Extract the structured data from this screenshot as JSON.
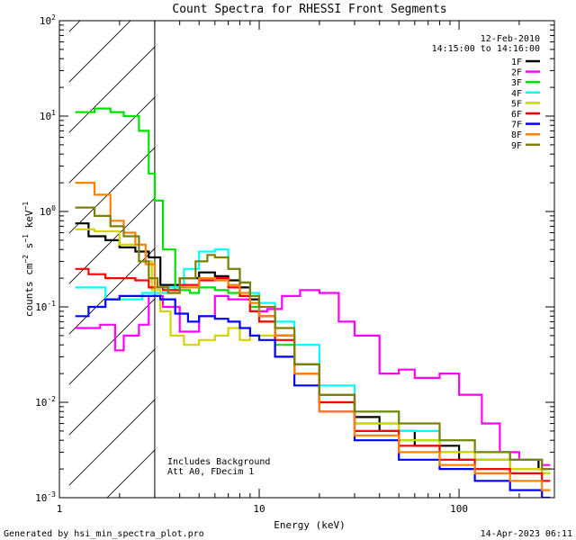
{
  "chart_data": {
    "type": "line",
    "title": "Count Spectra for RHESSI Front Segments",
    "xlabel": "Energy (keV)",
    "ylabel": {
      "base": "counts cm",
      "e1": "−2",
      "mid1": " s",
      "e2": "−1",
      "mid2": " keV",
      "e3": "−1"
    },
    "xscale": "log",
    "yscale": "log",
    "xlim": [
      1,
      300
    ],
    "ylim": [
      0.001,
      100
    ],
    "x_ticks": [
      {
        "value": 1,
        "label": "1"
      },
      {
        "value": 10,
        "label": "10"
      },
      {
        "value": 100,
        "label": "100"
      }
    ],
    "y_ticks": [
      {
        "value": 100,
        "base": "10",
        "exp": "2"
      },
      {
        "value": 10,
        "base": "10",
        "exp": "1"
      },
      {
        "value": 1,
        "base": "10",
        "exp": "0"
      },
      {
        "value": 0.1,
        "base": "10",
        "exp": "-1"
      },
      {
        "value": 0.01,
        "base": "10",
        "exp": "-2"
      },
      {
        "value": 0.001,
        "base": "10",
        "exp": "-3"
      }
    ],
    "hatched_region": [
      1.12,
      3.0
    ],
    "date": "12-Feb-2010",
    "time_range": "14:15:00 to 14:16:00",
    "annotations": [
      "Includes Background",
      "Att A0, FDecim 1"
    ],
    "series": [
      {
        "name": "1F",
        "color": "#000000",
        "points": [
          [
            1.2,
            0.75
          ],
          [
            1.4,
            0.55
          ],
          [
            1.7,
            0.5
          ],
          [
            2.0,
            0.42
          ],
          [
            2.4,
            0.38
          ],
          [
            2.8,
            0.33
          ],
          [
            3.2,
            0.17
          ],
          [
            4.0,
            0.2
          ],
          [
            5.0,
            0.23
          ],
          [
            6.0,
            0.21
          ],
          [
            7.0,
            0.19
          ],
          [
            8.0,
            0.16
          ],
          [
            9.0,
            0.12
          ],
          [
            10.0,
            0.08
          ],
          [
            12.0,
            0.05
          ],
          [
            15.0,
            0.025
          ],
          [
            20.0,
            0.012
          ],
          [
            30.0,
            0.007
          ],
          [
            40.0,
            0.005
          ],
          [
            60.0,
            0.0035
          ],
          [
            100.0,
            0.0025
          ],
          [
            150.0,
            0.0025
          ],
          [
            250.0,
            0.002
          ]
        ]
      },
      {
        "name": "2F",
        "color": "#ff00ff",
        "points": [
          [
            1.2,
            0.06
          ],
          [
            1.5,
            0.06
          ],
          [
            1.6,
            0.065
          ],
          [
            1.9,
            0.035
          ],
          [
            2.1,
            0.05
          ],
          [
            2.5,
            0.065
          ],
          [
            2.8,
            0.13
          ],
          [
            3.3,
            0.1
          ],
          [
            4.0,
            0.055
          ],
          [
            5.0,
            0.08
          ],
          [
            6.0,
            0.13
          ],
          [
            7.0,
            0.12
          ],
          [
            9.0,
            0.09
          ],
          [
            11.0,
            0.095
          ],
          [
            13.0,
            0.13
          ],
          [
            16.0,
            0.15
          ],
          [
            20.0,
            0.14
          ],
          [
            25.0,
            0.07
          ],
          [
            30.0,
            0.05
          ],
          [
            40.0,
            0.02
          ],
          [
            50.0,
            0.022
          ],
          [
            60.0,
            0.018
          ],
          [
            80.0,
            0.02
          ],
          [
            100.0,
            0.012
          ],
          [
            130.0,
            0.006
          ],
          [
            160.0,
            0.003
          ],
          [
            200.0,
            0.0025
          ],
          [
            260.0,
            0.0022
          ]
        ]
      },
      {
        "name": "3F",
        "color": "#00e000",
        "points": [
          [
            1.2,
            11.0
          ],
          [
            1.5,
            12.0
          ],
          [
            1.8,
            11.0
          ],
          [
            2.1,
            10.0
          ],
          [
            2.5,
            7.0
          ],
          [
            2.8,
            2.5
          ],
          [
            3.0,
            1.3
          ],
          [
            3.3,
            0.4
          ],
          [
            3.8,
            0.15
          ],
          [
            4.5,
            0.14
          ],
          [
            5.0,
            0.16
          ],
          [
            6.0,
            0.15
          ],
          [
            7.0,
            0.14
          ],
          [
            8.0,
            0.13
          ],
          [
            9.0,
            0.1
          ],
          [
            10.0,
            0.07
          ],
          [
            12.0,
            0.04
          ],
          [
            15.0,
            0.02
          ],
          [
            20.0,
            0.01
          ],
          [
            30.0,
            0.006
          ],
          [
            50.0,
            0.004
          ],
          [
            80.0,
            0.003
          ],
          [
            120.0,
            0.0025
          ],
          [
            180.0,
            0.002
          ],
          [
            260.0,
            0.0018
          ]
        ]
      },
      {
        "name": "4F",
        "color": "#00ffff",
        "points": [
          [
            1.2,
            0.16
          ],
          [
            1.4,
            0.16
          ],
          [
            1.7,
            0.12
          ],
          [
            2.2,
            0.12
          ],
          [
            2.6,
            0.14
          ],
          [
            3.0,
            0.14
          ],
          [
            3.5,
            0.16
          ],
          [
            4.2,
            0.25
          ],
          [
            5.0,
            0.38
          ],
          [
            6.0,
            0.4
          ],
          [
            7.0,
            0.25
          ],
          [
            8.0,
            0.18
          ],
          [
            9.0,
            0.14
          ],
          [
            10.0,
            0.11
          ],
          [
            12.0,
            0.07
          ],
          [
            15.0,
            0.04
          ],
          [
            20.0,
            0.015
          ],
          [
            30.0,
            0.008
          ],
          [
            50.0,
            0.005
          ],
          [
            80.0,
            0.004
          ],
          [
            120.0,
            0.003
          ],
          [
            180.0,
            0.0025
          ],
          [
            260.0,
            0.002
          ]
        ]
      },
      {
        "name": "5F",
        "color": "#d4d400",
        "points": [
          [
            1.2,
            0.65
          ],
          [
            1.5,
            0.62
          ],
          [
            2.0,
            0.45
          ],
          [
            2.5,
            0.3
          ],
          [
            2.9,
            0.15
          ],
          [
            3.2,
            0.09
          ],
          [
            3.6,
            0.05
          ],
          [
            4.2,
            0.04
          ],
          [
            5.0,
            0.045
          ],
          [
            6.0,
            0.05
          ],
          [
            7.0,
            0.06
          ],
          [
            8.0,
            0.045
          ],
          [
            9.0,
            0.05
          ],
          [
            10.0,
            0.05
          ],
          [
            12.0,
            0.03
          ],
          [
            15.0,
            0.02
          ],
          [
            20.0,
            0.01
          ],
          [
            30.0,
            0.006
          ],
          [
            50.0,
            0.004
          ],
          [
            80.0,
            0.003
          ],
          [
            120.0,
            0.0025
          ],
          [
            180.0,
            0.002
          ],
          [
            260.0,
            0.0018
          ]
        ]
      },
      {
        "name": "6F",
        "color": "#ff0000",
        "points": [
          [
            1.2,
            0.25
          ],
          [
            1.4,
            0.22
          ],
          [
            1.7,
            0.2
          ],
          [
            2.0,
            0.2
          ],
          [
            2.4,
            0.19
          ],
          [
            2.8,
            0.16
          ],
          [
            3.3,
            0.15
          ],
          [
            4.0,
            0.17
          ],
          [
            5.0,
            0.19
          ],
          [
            6.0,
            0.2
          ],
          [
            7.0,
            0.16
          ],
          [
            8.0,
            0.13
          ],
          [
            9.0,
            0.09
          ],
          [
            10.0,
            0.07
          ],
          [
            12.0,
            0.045
          ],
          [
            15.0,
            0.02
          ],
          [
            20.0,
            0.01
          ],
          [
            30.0,
            0.005
          ],
          [
            50.0,
            0.0035
          ],
          [
            80.0,
            0.0025
          ],
          [
            120.0,
            0.002
          ],
          [
            180.0,
            0.0018
          ],
          [
            260.0,
            0.0015
          ]
        ]
      },
      {
        "name": "7F",
        "color": "#0000ff",
        "points": [
          [
            1.2,
            0.08
          ],
          [
            1.4,
            0.1
          ],
          [
            1.7,
            0.12
          ],
          [
            2.0,
            0.13
          ],
          [
            2.4,
            0.13
          ],
          [
            2.8,
            0.13
          ],
          [
            3.2,
            0.12
          ],
          [
            3.8,
            0.085
          ],
          [
            4.4,
            0.07
          ],
          [
            5.0,
            0.08
          ],
          [
            6.0,
            0.075
          ],
          [
            7.0,
            0.07
          ],
          [
            8.0,
            0.06
          ],
          [
            9.0,
            0.05
          ],
          [
            10.0,
            0.045
          ],
          [
            12.0,
            0.03
          ],
          [
            15.0,
            0.015
          ],
          [
            20.0,
            0.008
          ],
          [
            30.0,
            0.004
          ],
          [
            50.0,
            0.0025
          ],
          [
            80.0,
            0.002
          ],
          [
            120.0,
            0.0015
          ],
          [
            180.0,
            0.0012
          ],
          [
            260.0,
            0.001
          ]
        ]
      },
      {
        "name": "8F",
        "color": "#ff8000",
        "points": [
          [
            1.2,
            2.0
          ],
          [
            1.5,
            1.5
          ],
          [
            1.8,
            0.8
          ],
          [
            2.1,
            0.6
          ],
          [
            2.4,
            0.45
          ],
          [
            2.7,
            0.28
          ],
          [
            3.0,
            0.16
          ],
          [
            3.5,
            0.14
          ],
          [
            4.0,
            0.16
          ],
          [
            5.0,
            0.2
          ],
          [
            6.0,
            0.19
          ],
          [
            7.0,
            0.17
          ],
          [
            8.0,
            0.14
          ],
          [
            9.0,
            0.11
          ],
          [
            10.0,
            0.08
          ],
          [
            12.0,
            0.05
          ],
          [
            15.0,
            0.02
          ],
          [
            20.0,
            0.008
          ],
          [
            30.0,
            0.0045
          ],
          [
            50.0,
            0.003
          ],
          [
            80.0,
            0.0022
          ],
          [
            120.0,
            0.0018
          ],
          [
            180.0,
            0.0015
          ],
          [
            260.0,
            0.0012
          ]
        ]
      },
      {
        "name": "9F",
        "color": "#808000",
        "points": [
          [
            1.2,
            1.1
          ],
          [
            1.5,
            0.9
          ],
          [
            1.8,
            0.7
          ],
          [
            2.1,
            0.55
          ],
          [
            2.5,
            0.3
          ],
          [
            2.8,
            0.2
          ],
          [
            3.1,
            0.16
          ],
          [
            3.5,
            0.14
          ],
          [
            4.0,
            0.2
          ],
          [
            4.8,
            0.3
          ],
          [
            5.5,
            0.35
          ],
          [
            6.0,
            0.33
          ],
          [
            7.0,
            0.25
          ],
          [
            8.0,
            0.18
          ],
          [
            9.0,
            0.13
          ],
          [
            10.0,
            0.1
          ],
          [
            12.0,
            0.06
          ],
          [
            15.0,
            0.025
          ],
          [
            20.0,
            0.012
          ],
          [
            30.0,
            0.008
          ],
          [
            50.0,
            0.006
          ],
          [
            80.0,
            0.004
          ],
          [
            120.0,
            0.003
          ],
          [
            180.0,
            0.0025
          ],
          [
            260.0,
            0.002
          ]
        ]
      }
    ]
  },
  "footer": {
    "generated_by": "Generated by hsi_min_spectra_plot.pro",
    "timestamp": "14-Apr-2023 06:11"
  }
}
